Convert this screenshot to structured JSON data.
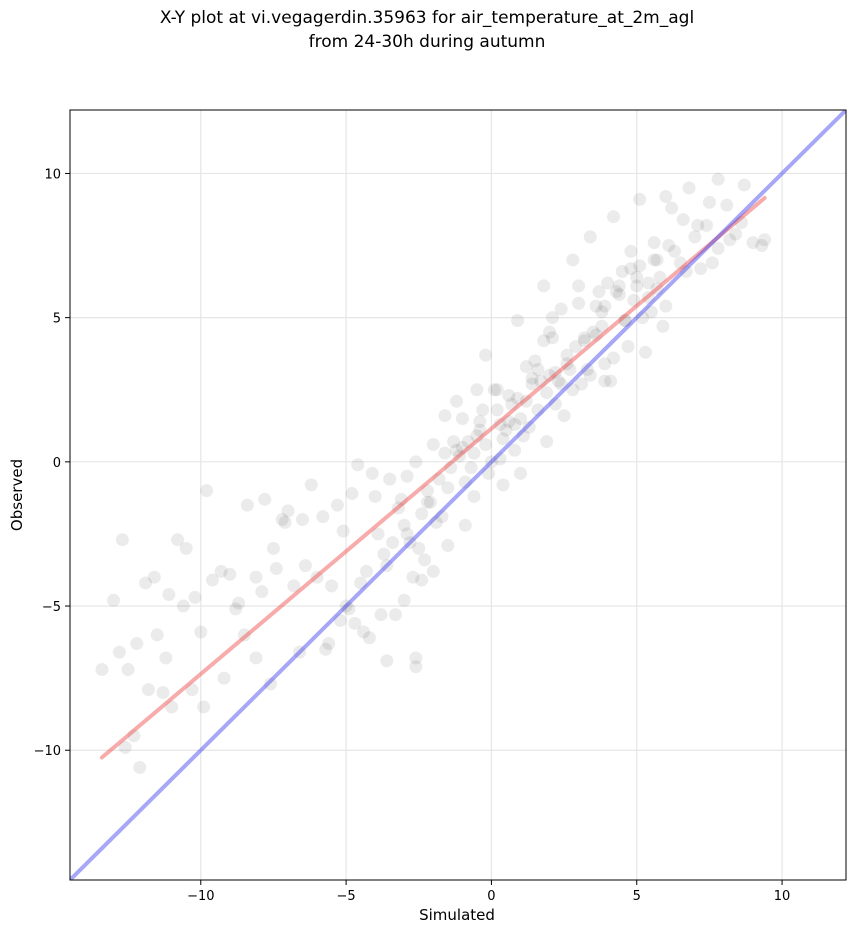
{
  "chart_data": {
    "type": "scatter",
    "title": [
      "X-Y plot at vi.vegagerdin.35963 for air_temperature_at_2m_agl",
      "from 24-30h during autumn"
    ],
    "xlabel": "Simulated",
    "ylabel": "Observed",
    "xlim": [
      -14.5,
      12.2
    ],
    "ylim": [
      -14.5,
      12.2
    ],
    "xticks": [
      -10,
      -5,
      0,
      5,
      10
    ],
    "yticks": [
      -10,
      -5,
      0,
      5,
      10
    ],
    "xtick_labels": [
      "−10",
      "−5",
      "0",
      "5",
      "10"
    ],
    "ytick_labels": [
      "−10",
      "−5",
      "0",
      "5",
      "10"
    ],
    "grid": true,
    "point_color": "#000000",
    "point_alpha": 0.08,
    "points": {
      "x": [
        -13.4,
        -13.0,
        -12.8,
        -12.7,
        -12.5,
        -12.3,
        -12.2,
        -12.1,
        -11.9,
        -11.6,
        -11.5,
        -11.3,
        -11.1,
        -11.0,
        -10.8,
        -10.5,
        -10.2,
        -10.0,
        -9.8,
        -9.6,
        -9.3,
        -9.0,
        -8.7,
        -8.4,
        -8.1,
        -7.8,
        -7.5,
        -7.2,
        -7.0,
        -6.8,
        -6.5,
        -6.2,
        -6.0,
        -5.8,
        -5.5,
        -5.3,
        -5.0,
        -4.8,
        -4.6,
        -4.3,
        -4.1,
        -3.9,
        -3.7,
        -3.5,
        -3.2,
        -3.0,
        -2.8,
        -2.6,
        -2.4,
        -2.2,
        -2.0,
        -1.8,
        -1.6,
        -1.4,
        -1.2,
        -1.0,
        -0.8,
        -0.6,
        -0.4,
        -0.2,
        0.0,
        0.2,
        0.4,
        0.6,
        0.8,
        1.0,
        1.2,
        1.4,
        1.6,
        1.8,
        2.0,
        2.2,
        2.4,
        2.6,
        2.8,
        3.0,
        3.2,
        3.4,
        3.6,
        3.8,
        4.0,
        4.2,
        4.4,
        4.6,
        4.8,
        5.0,
        5.2,
        5.4,
        5.6,
        5.8,
        6.0,
        6.2,
        6.5,
        6.8,
        7.0,
        7.2,
        7.5,
        7.8,
        8.1,
        8.4,
        8.7,
        9.0,
        9.3,
        -12.6,
        -11.8,
        -11.2,
        -10.6,
        -9.9,
        -9.2,
        -8.5,
        -7.9,
        -7.1,
        -6.4,
        -5.7,
        -5.1,
        -4.5,
        -4.0,
        -3.4,
        -2.9,
        -2.5,
        -2.1,
        -1.7,
        -1.3,
        -0.9,
        -0.5,
        -0.1,
        0.3,
        0.7,
        1.1,
        1.5,
        1.9,
        2.3,
        2.7,
        3.1,
        3.5,
        3.9,
        4.3,
        4.7,
        5.1,
        5.5,
        5.9,
        6.3,
        6.7,
        7.1,
        7.6,
        8.2,
        -10.3,
        -8.8,
        -7.4,
        -5.6,
        -4.7,
        -3.8,
        -3.1,
        -2.7,
        -2.3,
        -1.9,
        -1.5,
        -1.1,
        -0.7,
        -0.3,
        0.1,
        0.5,
        0.9,
        1.3,
        1.7,
        2.1,
        2.5,
        2.9,
        3.3,
        3.7,
        4.1,
        4.5,
        4.9,
        5.3,
        5.7,
        6.1,
        -4.9,
        -4.4,
        -3.6,
        -2.9,
        -2.2,
        -1.6,
        -1.0,
        -0.4,
        0.2,
        0.8,
        1.4,
        2.0,
        2.6,
        3.2,
        3.8,
        4.4,
        5.0,
        5.6,
        -4.2,
        -3.3,
        -2.4,
        -1.5,
        -0.6,
        0.3,
        1.2,
        2.1,
        3.0,
        3.9,
        4.8,
        5.7,
        -6.6,
        -5.2,
        -2.6,
        0.6,
        1.6,
        2.4,
        3.6,
        4.6,
        5.4,
        6.6,
        7.4,
        -1.2,
        -0.2,
        0.9,
        1.8,
        2.8,
        3.4,
        4.2,
        5.1,
        6.0,
        -3.0,
        -2.0,
        -0.9,
        0.4,
        1.0,
        1.9,
        2.2,
        3.9,
        7.8,
        8.6,
        9.4,
        -8.1,
        -7.6,
        -3.6,
        -2.6,
        -0.5
      ],
      "y": [
        -7.2,
        -4.8,
        -6.6,
        -2.7,
        -7.2,
        -9.5,
        -6.3,
        -10.6,
        -4.2,
        -4.0,
        -6.0,
        -8.0,
        -4.6,
        -8.5,
        -2.7,
        -3.0,
        -4.7,
        -5.9,
        -1.0,
        -4.1,
        -3.8,
        -3.9,
        -4.9,
        -1.5,
        -4.0,
        -1.3,
        -3.0,
        -2.0,
        -1.7,
        -4.3,
        -2.0,
        -0.8,
        -4.0,
        -1.9,
        -4.3,
        -1.5,
        -5.0,
        -1.1,
        -0.1,
        -3.8,
        -0.4,
        -2.5,
        -3.2,
        -0.6,
        -1.6,
        -2.2,
        -2.8,
        0.0,
        -1.8,
        -1.0,
        0.6,
        -0.6,
        1.6,
        -0.2,
        0.4,
        1.5,
        0.7,
        0.3,
        1.4,
        0.6,
        0.0,
        1.8,
        0.8,
        2.3,
        0.4,
        1.5,
        3.3,
        2.7,
        1.8,
        4.2,
        3.0,
        2.0,
        5.3,
        3.7,
        2.5,
        6.1,
        4.2,
        3.0,
        5.4,
        4.7,
        6.2,
        3.6,
        5.8,
        4.9,
        7.3,
        6.1,
        5.0,
        5.7,
        7.6,
        6.4,
        5.4,
        8.8,
        6.9,
        9.5,
        7.8,
        6.7,
        9.0,
        7.4,
        8.9,
        7.9,
        9.6,
        7.6,
        7.5,
        -9.9,
        -7.9,
        -6.8,
        -5.0,
        -8.5,
        -7.5,
        -6.0,
        -4.5,
        -2.1,
        -3.6,
        -6.5,
        -2.4,
        -4.2,
        -1.2,
        -2.8,
        -0.5,
        -3.0,
        -1.4,
        -1.9,
        0.7,
        -0.7,
        0.9,
        -0.4,
        1.3,
        2.0,
        0.9,
        3.5,
        2.4,
        2.8,
        3.2,
        2.7,
        4.5,
        3.4,
        5.9,
        4.0,
        6.8,
        5.2,
        4.7,
        7.3,
        6.6,
        8.2,
        6.9,
        7.7,
        -7.9,
        -5.1,
        -3.7,
        -6.3,
        -5.6,
        -5.3,
        -1.3,
        -4.0,
        -3.4,
        -2.1,
        -0.9,
        0.2,
        -0.2,
        1.8,
        2.5,
        1.1,
        2.2,
        1.2,
        2.8,
        5.0,
        1.6,
        4.0,
        3.2,
        5.9,
        2.8,
        6.6,
        5.6,
        3.8,
        6.0,
        7.5,
        -5.1,
        -5.9,
        -3.6,
        -2.5,
        -1.4,
        0.3,
        0.5,
        1.1,
        2.5,
        1.3,
        2.9,
        4.5,
        3.4,
        4.3,
        5.2,
        6.1,
        6.4,
        7.0,
        -6.1,
        -5.3,
        -4.1,
        -2.9,
        -1.2,
        0.1,
        2.1,
        4.3,
        5.5,
        5.4,
        6.7,
        7.0,
        -6.6,
        -5.5,
        -6.8,
        1.4,
        3.2,
        2.7,
        4.4,
        4.9,
        6.2,
        8.4,
        8.2,
        2.1,
        3.7,
        4.9,
        6.1,
        7.0,
        7.8,
        8.5,
        9.1,
        9.2,
        -4.8,
        -3.8,
        -2.2,
        -0.8,
        -0.4,
        0.7,
        3.1,
        2.8,
        9.8,
        8.3,
        7.7,
        -6.8,
        -7.7,
        -6.9,
        -7.1,
        2.5
      ]
    },
    "lines": [
      {
        "color": "#ef4444",
        "alpha": 0.45,
        "x": [
          -13.4,
          9.4
        ],
        "y": [
          -10.25,
          9.15
        ]
      },
      {
        "color": "#3b3bef",
        "alpha": 0.45,
        "x": [
          -14.5,
          12.2
        ],
        "y": [
          -14.5,
          12.2
        ]
      }
    ]
  }
}
